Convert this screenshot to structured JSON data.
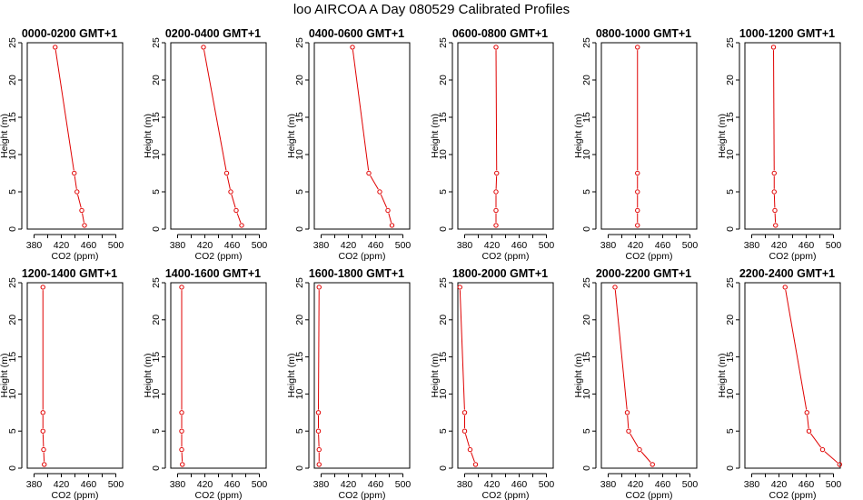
{
  "figure": {
    "title": "loo AIRCOA A  Day 080529  Calibrated Profiles"
  },
  "chart_data": [
    {
      "type": "line",
      "title": "0000-0200 GMT+1",
      "xlabel": "CO2 (ppm)",
      "ylabel": "Height (m)",
      "xlim": [
        370,
        510
      ],
      "ylim": [
        0,
        25
      ],
      "x_ticks": [
        380,
        400,
        420,
        440,
        460,
        480,
        500
      ],
      "x_tick_labels": [
        "380",
        "420",
        "460",
        "500"
      ],
      "y_ticks": [
        0,
        5,
        10,
        15,
        20,
        25
      ],
      "series": [
        {
          "color": "#e00000",
          "points": [
            {
              "x": 411,
              "y": 24.4
            },
            {
              "x": 439,
              "y": 7.5
            },
            {
              "x": 443,
              "y": 5
            },
            {
              "x": 450,
              "y": 2.5
            },
            {
              "x": 454,
              "y": 0.5
            }
          ]
        }
      ]
    },
    {
      "type": "line",
      "title": "0200-0400 GMT+1",
      "xlabel": "CO2 (ppm)",
      "ylabel": "Height (m)",
      "xlim": [
        370,
        510
      ],
      "ylim": [
        0,
        25
      ],
      "x_ticks": [
        380,
        400,
        420,
        440,
        460,
        480,
        500
      ],
      "x_tick_labels": [
        "380",
        "420",
        "460",
        "500"
      ],
      "y_ticks": [
        0,
        5,
        10,
        15,
        20,
        25
      ],
      "series": [
        {
          "color": "#e00000",
          "points": [
            {
              "x": 418,
              "y": 24.4
            },
            {
              "x": 452,
              "y": 7.5
            },
            {
              "x": 458,
              "y": 5
            },
            {
              "x": 466,
              "y": 2.5
            },
            {
              "x": 474,
              "y": 0.5
            }
          ]
        }
      ]
    },
    {
      "type": "line",
      "title": "0400-0600 GMT+1",
      "xlabel": "CO2 (ppm)",
      "ylabel": "Height (m)",
      "xlim": [
        370,
        510
      ],
      "ylim": [
        0,
        25
      ],
      "x_ticks": [
        380,
        400,
        420,
        440,
        460,
        480,
        500
      ],
      "x_tick_labels": [
        "380",
        "420",
        "460",
        "500"
      ],
      "y_ticks": [
        0,
        5,
        10,
        15,
        20,
        25
      ],
      "series": [
        {
          "color": "#e00000",
          "points": [
            {
              "x": 426,
              "y": 24.4
            },
            {
              "x": 450,
              "y": 7.5
            },
            {
              "x": 466,
              "y": 5
            },
            {
              "x": 478,
              "y": 2.5
            },
            {
              "x": 484,
              "y": 0.5
            }
          ]
        }
      ]
    },
    {
      "type": "line",
      "title": "0600-0800 GMT+1",
      "xlabel": "CO2 (ppm)",
      "ylabel": "Height (m)",
      "xlim": [
        370,
        510
      ],
      "ylim": [
        0,
        25
      ],
      "x_ticks": [
        380,
        400,
        420,
        440,
        460,
        480,
        500
      ],
      "x_tick_labels": [
        "380",
        "420",
        "460",
        "500"
      ],
      "y_ticks": [
        0,
        5,
        10,
        15,
        20,
        25
      ],
      "series": [
        {
          "color": "#e00000",
          "points": [
            {
              "x": 426,
              "y": 24.4
            },
            {
              "x": 427,
              "y": 7.5
            },
            {
              "x": 426,
              "y": 5
            },
            {
              "x": 426,
              "y": 2.5
            },
            {
              "x": 426,
              "y": 0.5
            }
          ]
        }
      ]
    },
    {
      "type": "line",
      "title": "0800-1000 GMT+1",
      "xlabel": "CO2 (ppm)",
      "ylabel": "Height (m)",
      "xlim": [
        370,
        510
      ],
      "ylim": [
        0,
        25
      ],
      "x_ticks": [
        380,
        400,
        420,
        440,
        460,
        480,
        500
      ],
      "x_tick_labels": [
        "380",
        "420",
        "460",
        "500"
      ],
      "y_ticks": [
        0,
        5,
        10,
        15,
        20,
        25
      ],
      "series": [
        {
          "color": "#e00000",
          "points": [
            {
              "x": 423,
              "y": 24.4
            },
            {
              "x": 423,
              "y": 7.5
            },
            {
              "x": 423,
              "y": 5
            },
            {
              "x": 423,
              "y": 2.5
            },
            {
              "x": 423,
              "y": 0.5
            }
          ]
        }
      ]
    },
    {
      "type": "line",
      "title": "1000-1200 GMT+1",
      "xlabel": "CO2 (ppm)",
      "ylabel": "Height (m)",
      "xlim": [
        370,
        510
      ],
      "ylim": [
        0,
        25
      ],
      "x_ticks": [
        380,
        400,
        420,
        440,
        460,
        480,
        500
      ],
      "x_tick_labels": [
        "380",
        "420",
        "460",
        "500"
      ],
      "y_ticks": [
        0,
        5,
        10,
        15,
        20,
        25
      ],
      "series": [
        {
          "color": "#e00000",
          "points": [
            {
              "x": 412,
              "y": 24.4
            },
            {
              "x": 413,
              "y": 7.5
            },
            {
              "x": 413,
              "y": 5
            },
            {
              "x": 414,
              "y": 2.5
            },
            {
              "x": 415,
              "y": 0.5
            }
          ]
        }
      ]
    },
    {
      "type": "line",
      "title": "1200-1400 GMT+1",
      "xlabel": "CO2 (ppm)",
      "ylabel": "Height (m)",
      "xlim": [
        370,
        510
      ],
      "ylim": [
        0,
        25
      ],
      "x_ticks": [
        380,
        400,
        420,
        440,
        460,
        480,
        500
      ],
      "x_tick_labels": [
        "380",
        "420",
        "460",
        "500"
      ],
      "y_ticks": [
        0,
        5,
        10,
        15,
        20,
        25
      ],
      "series": [
        {
          "color": "#e00000",
          "points": [
            {
              "x": 393,
              "y": 24.4
            },
            {
              "x": 393,
              "y": 7.5
            },
            {
              "x": 393,
              "y": 5
            },
            {
              "x": 394,
              "y": 2.5
            },
            {
              "x": 395,
              "y": 0.5
            }
          ]
        }
      ]
    },
    {
      "type": "line",
      "title": "1400-1600 GMT+1",
      "xlabel": "CO2 (ppm)",
      "ylabel": "Height (m)",
      "xlim": [
        370,
        510
      ],
      "ylim": [
        0,
        25
      ],
      "x_ticks": [
        380,
        400,
        420,
        440,
        460,
        480,
        500
      ],
      "x_tick_labels": [
        "380",
        "420",
        "460",
        "500"
      ],
      "y_ticks": [
        0,
        5,
        10,
        15,
        20,
        25
      ],
      "series": [
        {
          "color": "#e00000",
          "points": [
            {
              "x": 386,
              "y": 24.4
            },
            {
              "x": 386,
              "y": 7.5
            },
            {
              "x": 386,
              "y": 5
            },
            {
              "x": 386,
              "y": 2.5
            },
            {
              "x": 387,
              "y": 0.5
            }
          ]
        }
      ]
    },
    {
      "type": "line",
      "title": "1600-1800 GMT+1",
      "xlabel": "CO2 (ppm)",
      "ylabel": "Height (m)",
      "xlim": [
        370,
        510
      ],
      "ylim": [
        0,
        25
      ],
      "x_ticks": [
        380,
        400,
        420,
        440,
        460,
        480,
        500
      ],
      "x_tick_labels": [
        "380",
        "420",
        "460",
        "500"
      ],
      "y_ticks": [
        0,
        5,
        10,
        15,
        20,
        25
      ],
      "series": [
        {
          "color": "#e00000",
          "points": [
            {
              "x": 377,
              "y": 24.4
            },
            {
              "x": 376,
              "y": 7.5
            },
            {
              "x": 376,
              "y": 5
            },
            {
              "x": 377,
              "y": 2.5
            },
            {
              "x": 377,
              "y": 0.5
            }
          ]
        }
      ]
    },
    {
      "type": "line",
      "title": "1800-2000 GMT+1",
      "xlabel": "CO2 (ppm)",
      "ylabel": "Height (m)",
      "xlim": [
        370,
        510
      ],
      "ylim": [
        0,
        25
      ],
      "x_ticks": [
        380,
        400,
        420,
        440,
        460,
        480,
        500
      ],
      "x_tick_labels": [
        "380",
        "420",
        "460",
        "500"
      ],
      "y_ticks": [
        0,
        5,
        10,
        15,
        20,
        25
      ],
      "series": [
        {
          "color": "#e00000",
          "points": [
            {
              "x": 373,
              "y": 24.4
            },
            {
              "x": 380,
              "y": 7.5
            },
            {
              "x": 380,
              "y": 5
            },
            {
              "x": 388,
              "y": 2.5
            },
            {
              "x": 396,
              "y": 0.5
            }
          ]
        }
      ]
    },
    {
      "type": "line",
      "title": "2000-2200 GMT+1",
      "xlabel": "CO2 (ppm)",
      "ylabel": "Height (m)",
      "xlim": [
        370,
        510
      ],
      "ylim": [
        0,
        25
      ],
      "x_ticks": [
        380,
        400,
        420,
        440,
        460,
        480,
        500
      ],
      "x_tick_labels": [
        "380",
        "420",
        "460",
        "500"
      ],
      "y_ticks": [
        0,
        5,
        10,
        15,
        20,
        25
      ],
      "series": [
        {
          "color": "#e00000",
          "points": [
            {
              "x": 390,
              "y": 24.4
            },
            {
              "x": 408,
              "y": 7.5
            },
            {
              "x": 410,
              "y": 5
            },
            {
              "x": 426,
              "y": 2.5
            },
            {
              "x": 445,
              "y": 0.5
            }
          ]
        }
      ]
    },
    {
      "type": "line",
      "title": "2200-2400 GMT+1",
      "xlabel": "CO2 (ppm)",
      "ylabel": "Height (m)",
      "xlim": [
        370,
        510
      ],
      "ylim": [
        0,
        25
      ],
      "x_ticks": [
        380,
        400,
        420,
        440,
        460,
        480,
        500
      ],
      "x_tick_labels": [
        "380",
        "420",
        "460",
        "500"
      ],
      "y_ticks": [
        0,
        5,
        10,
        15,
        20,
        25
      ],
      "series": [
        {
          "color": "#e00000",
          "points": [
            {
              "x": 429,
              "y": 24.4
            },
            {
              "x": 461,
              "y": 7.5
            },
            {
              "x": 464,
              "y": 5
            },
            {
              "x": 484,
              "y": 2.5
            },
            {
              "x": 509,
              "y": 0.5
            }
          ]
        }
      ]
    }
  ]
}
